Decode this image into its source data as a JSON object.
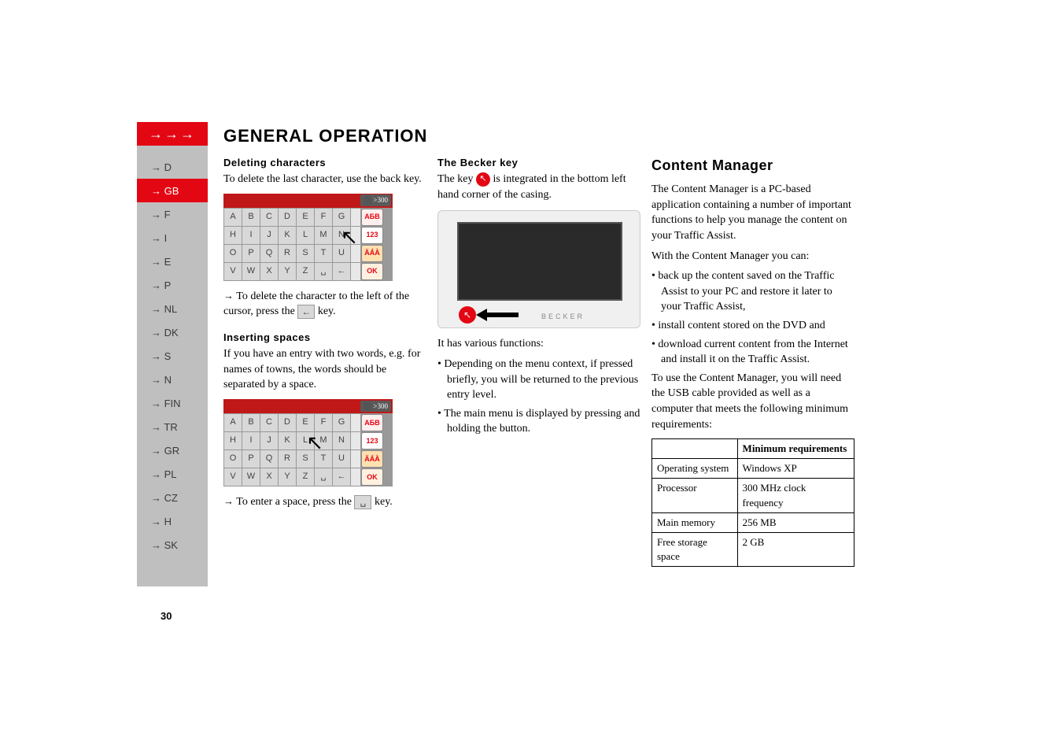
{
  "header": {
    "arrows": "→→→",
    "title": "GENERAL OPERATION"
  },
  "sidebar": {
    "items": [
      {
        "arrow": "→",
        "label": "D",
        "active": false
      },
      {
        "arrow": "→",
        "label": "GB",
        "active": true
      },
      {
        "arrow": "→",
        "label": "F",
        "active": false
      },
      {
        "arrow": "→",
        "label": "I",
        "active": false
      },
      {
        "arrow": "→",
        "label": "E",
        "active": false
      },
      {
        "arrow": "→",
        "label": "P",
        "active": false
      },
      {
        "arrow": "→",
        "label": "NL",
        "active": false
      },
      {
        "arrow": "→",
        "label": "DK",
        "active": false
      },
      {
        "arrow": "→",
        "label": "S",
        "active": false
      },
      {
        "arrow": "→",
        "label": "N",
        "active": false
      },
      {
        "arrow": "→",
        "label": "FIN",
        "active": false
      },
      {
        "arrow": "→",
        "label": "TR",
        "active": false
      },
      {
        "arrow": "→",
        "label": "GR",
        "active": false
      },
      {
        "arrow": "→",
        "label": "PL",
        "active": false
      },
      {
        "arrow": "→",
        "label": "CZ",
        "active": false
      },
      {
        "arrow": "→",
        "label": "H",
        "active": false
      },
      {
        "arrow": "→",
        "label": "SK",
        "active": false
      }
    ]
  },
  "page_number": "30",
  "col1": {
    "deleting_heading": "Deleting characters",
    "deleting_text": "To delete the last character, use the back key.",
    "delete_instruction_prefix": "→",
    "delete_instruction_1": "To delete the character to the left of the cursor, press the",
    "delete_instruction_2": "key.",
    "inserting_heading": "Inserting spaces",
    "inserting_text": "If you have an entry with two words, e.g. for names of towns, the words should be separated by a space.",
    "space_instruction_prefix": "→",
    "space_instruction_1": "To enter a space, press the",
    "space_instruction_2": "key.",
    "back_key_glyph": "←",
    "space_key_glyph": "␣"
  },
  "keyboard": {
    "header_badge": ">300",
    "rows": [
      [
        "A",
        "B",
        "C",
        "D",
        "E",
        "F",
        "G"
      ],
      [
        "H",
        "I",
        "J",
        "K",
        "L",
        "M",
        "N"
      ],
      [
        "O",
        "P",
        "Q",
        "R",
        "S",
        "T",
        "U"
      ],
      [
        "V",
        "W",
        "X",
        "Y",
        "Z",
        "␣",
        "←"
      ]
    ],
    "side_keys": [
      "АБВ",
      "123",
      "ÄÁÀ",
      "OK"
    ]
  },
  "col2": {
    "becker_heading": "The Becker key",
    "becker_text_1": "The key",
    "becker_text_2": "is integrated in the bottom left hand corner of the casing.",
    "device_logo": "BECKER",
    "functions_intro": "It has various functions:",
    "functions": [
      "Depending on the menu context, if pressed briefly, you will be returned to the previous entry level.",
      "The main menu is displayed by pressing and holding the button."
    ]
  },
  "col3": {
    "cm_heading": "Content Manager",
    "cm_p1": "The Content Manager is a PC-based application containing a number of important functions to help you manage the content on your Traffic Assist.",
    "cm_p2": "With the Content Manager you can:",
    "cm_list": [
      "back up the content saved on the Traffic Assist to your PC and restore it later to your Traffic Assist,",
      "install content stored on the DVD and",
      "download current content from the Internet and install it on the Traffic Assist."
    ],
    "cm_p3": "To use the Content Manager, you will need the USB cable provided as well as a computer that meets the following minimum requirements:",
    "table": {
      "header_blank": "",
      "header_req": "Minimum requirements",
      "rows": [
        [
          "Operating system",
          "Windows XP"
        ],
        [
          "Processor",
          "300 MHz clock frequency"
        ],
        [
          "Main memory",
          "256 MB"
        ],
        [
          "Free storage space",
          "2 GB"
        ]
      ]
    }
  },
  "colors": {
    "accent_red": "#e30613",
    "sidebar_bg": "#bfbfbf",
    "key_bg": "#d8d8d8"
  }
}
